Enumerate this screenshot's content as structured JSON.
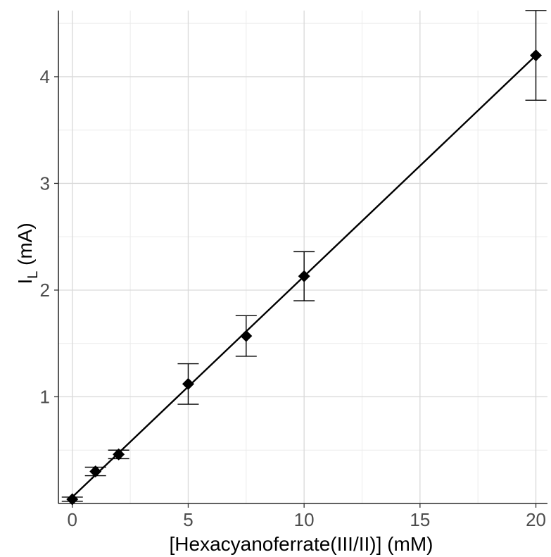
{
  "chart_data": {
    "type": "scatter",
    "title": "",
    "xlabel": "[Hexacyanoferrate(III/II)] (mM)",
    "ylabel_main": "I",
    "ylabel_subscript": "L",
    "ylabel_unit": " (mA)",
    "xlim": [
      -0.6,
      20.5
    ],
    "ylim": [
      0.0,
      4.62
    ],
    "x_ticks": [
      0,
      5,
      10,
      15,
      20
    ],
    "y_ticks": [
      1,
      2,
      3,
      4
    ],
    "x_minor_ticks": [
      2.5,
      7.5,
      12.5,
      17.5
    ],
    "y_minor_ticks": [
      0.5,
      1.5,
      2.5,
      3.5,
      4.5
    ],
    "grid": true,
    "legend": false,
    "marker": "diamond",
    "series": [
      {
        "x": [
          0,
          1,
          2,
          5,
          7.5,
          10,
          20
        ],
        "y": [
          0.04,
          0.3,
          0.46,
          1.12,
          1.57,
          2.13,
          4.2
        ],
        "yerr_low": [
          0.02,
          0.26,
          0.42,
          0.93,
          1.38,
          1.9,
          3.78
        ],
        "yerr_high": [
          0.06,
          0.34,
          0.5,
          1.31,
          1.76,
          2.36,
          4.62
        ]
      }
    ],
    "fit_line": {
      "x": [
        0,
        20
      ],
      "y": [
        0.06,
        4.2
      ]
    },
    "colors": {
      "points": "#000000",
      "line": "#000000",
      "grid_major": "#d9d9d9",
      "grid_minor": "#ebebeb",
      "tick_text": "#4d4d4d"
    }
  }
}
